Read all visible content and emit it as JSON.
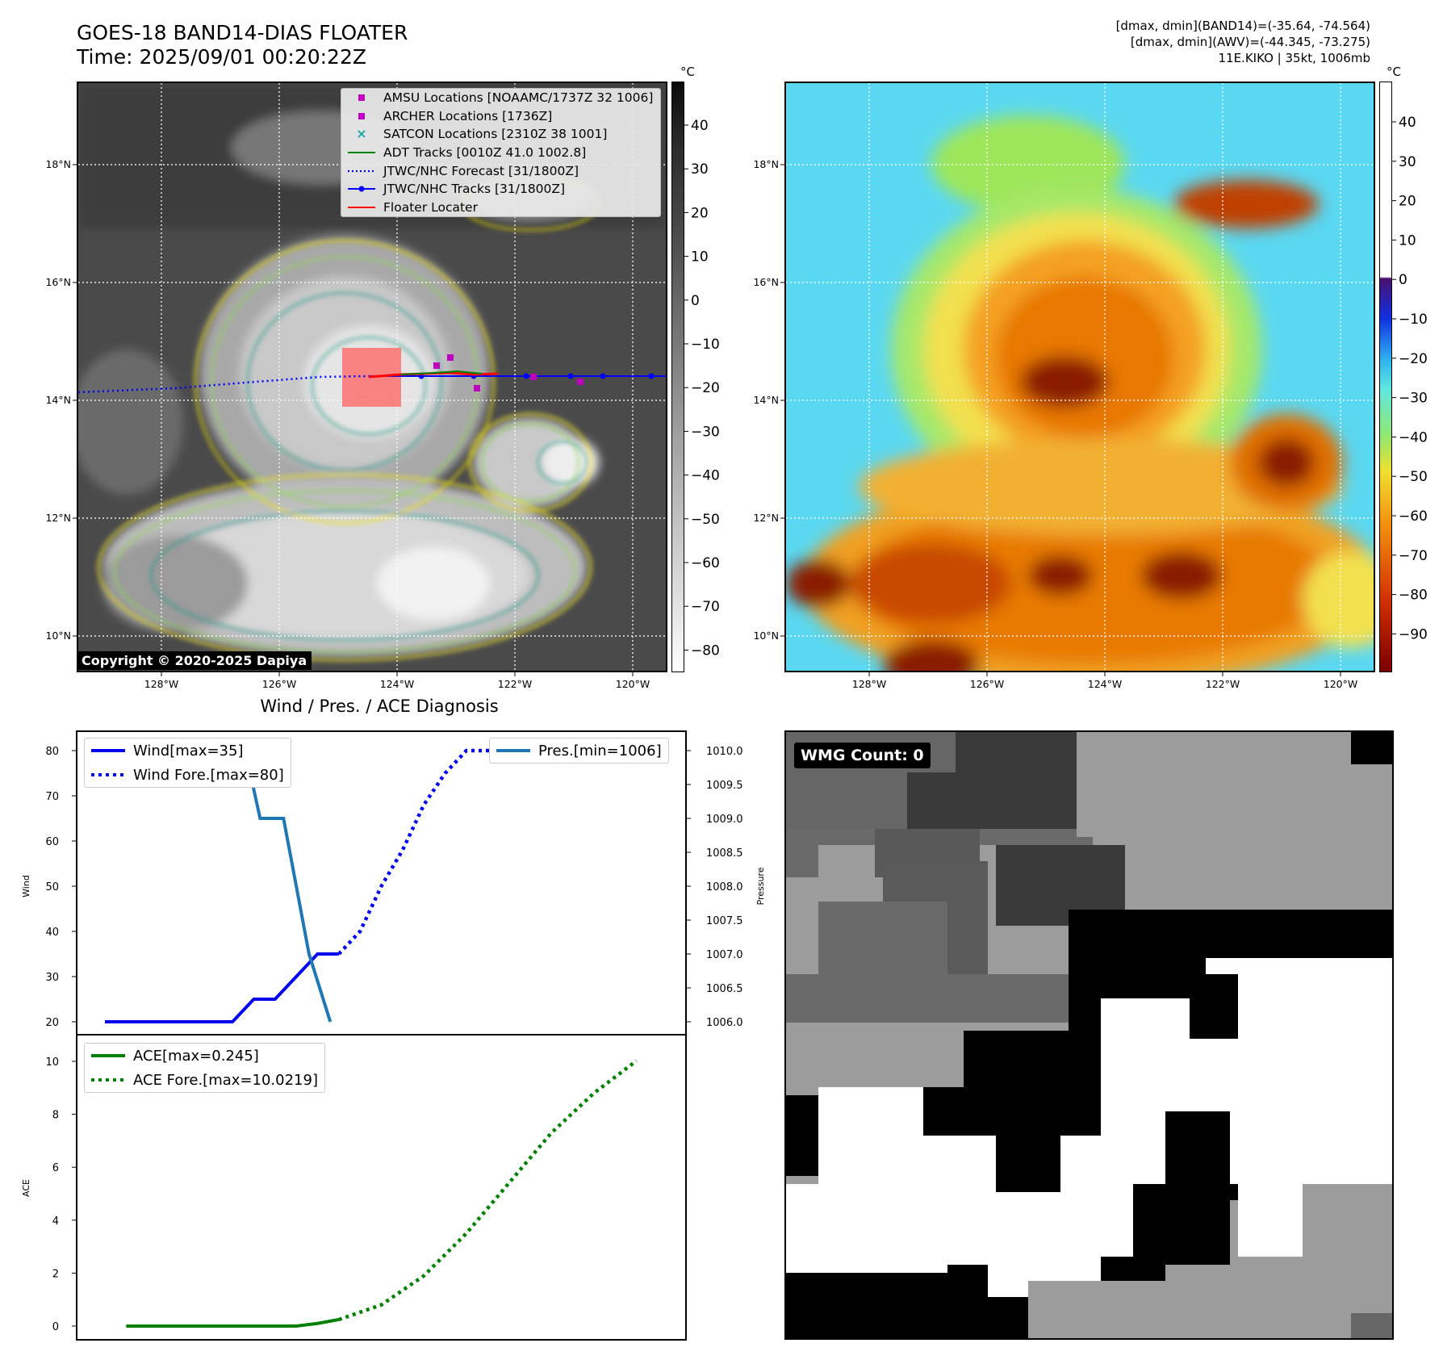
{
  "header": {
    "title_line1": "GOES-18 BAND14-DIAS FLOATER",
    "title_line2": "Time: 2025/09/01 00:20:22Z",
    "info_line1": "[dmax, dmin](BAND14)=(-35.64, -74.564)",
    "info_line2": "[dmax, dmin](AWV)=(-44.345, -73.275)",
    "info_line3": "11E.KIKO | 35kt, 1006mb"
  },
  "map": {
    "lon_labels": [
      "128°W",
      "126°W",
      "124°W",
      "122°W",
      "120°W"
    ],
    "lat_labels": [
      "18°N",
      "16°N",
      "14°N",
      "12°N",
      "10°N"
    ],
    "copyright": "Copyright © 2020-2025 Dapiya",
    "unit": "°C"
  },
  "left_colorbar": {
    "ticks": [
      "40",
      "30",
      "20",
      "10",
      "0",
      "−10",
      "−20",
      "−30",
      "−40",
      "−50",
      "−60",
      "−70",
      "−80"
    ]
  },
  "right_colorbar": {
    "ticks": [
      "40",
      "30",
      "20",
      "10",
      "0",
      "−10",
      "−20",
      "−30",
      "−40",
      "−50",
      "−60",
      "−70",
      "−80",
      "−90"
    ]
  },
  "map_legend": [
    {
      "label": "AMSU Locations [NOAAMC/1737Z 32 1006]",
      "color": "#c000c0",
      "kind": "square"
    },
    {
      "label": "ARCHER Locations [1736Z]",
      "color": "#c000c0",
      "kind": "square"
    },
    {
      "label": "SATCON Locations [2310Z 38 1001]",
      "color": "#1aa6a6",
      "kind": "x"
    },
    {
      "label": "ADT Tracks [0010Z 41.0 1002.8]",
      "color": "#008000",
      "kind": "line"
    },
    {
      "label": "JTWC/NHC Forecast [31/1800Z]",
      "color": "#0000ff",
      "kind": "dotted"
    },
    {
      "label": "JTWC/NHC Tracks [31/1800Z]",
      "color": "#0000ff",
      "kind": "lineDot"
    },
    {
      "label": "Floater Locater",
      "color": "#ff0000",
      "kind": "line"
    }
  ],
  "diagnosis": {
    "title": "Wind / Pres. / ACE Diagnosis",
    "wmg_label": "WMG Count: 0"
  },
  "chart_data": [
    {
      "type": "line",
      "title": "Wind / Pres. / ACE Diagnosis",
      "ylabel": "Wind",
      "ylabel_right": "Pressure",
      "ylim": [
        18,
        82
      ],
      "ylim_right": [
        1005.9,
        1010.1
      ],
      "yticks": [
        20,
        30,
        40,
        50,
        60,
        70,
        80
      ],
      "yticks_right": [
        "1006.0",
        "1006.5",
        "1007.0",
        "1007.5",
        "1008.0",
        "1008.5",
        "1009.0",
        "1009.5",
        "1010.0"
      ],
      "legend_left": [
        "Wind[max=35]",
        "Wind Fore.[max=80]"
      ],
      "legend_right": [
        "Pres.[min=1006]"
      ],
      "series": [
        {
          "name": "Wind[max=35]",
          "style": "solid",
          "color": "#0000ee",
          "x": [
            0,
            1,
            2,
            3,
            4,
            5,
            6,
            7,
            8,
            9,
            10,
            11
          ],
          "values": [
            20,
            20,
            20,
            20,
            20,
            20,
            20,
            25,
            25,
            30,
            35,
            35
          ]
        },
        {
          "name": "Wind Fore.[max=80]",
          "style": "dotted",
          "color": "#0000ee",
          "x": [
            11,
            12,
            13,
            14,
            15,
            16,
            17,
            18,
            19,
            20,
            21,
            22,
            23,
            24,
            25
          ],
          "values": [
            35,
            40,
            50,
            58,
            68,
            75,
            80,
            80,
            80,
            80,
            80,
            80,
            80,
            80,
            80
          ]
        },
        {
          "name": "Pres.[min=1006]",
          "style": "solid",
          "color": "#1f77b4",
          "axis": "right",
          "x": [
            1,
            2,
            3,
            4,
            5,
            6,
            6.6,
            7.3,
            8.4,
            9.6,
            10.6
          ],
          "values": [
            1010,
            1010,
            1010,
            1010,
            1010,
            1010,
            1010,
            1009,
            1009,
            1007,
            1006
          ]
        }
      ]
    },
    {
      "type": "line",
      "ylabel": "ACE",
      "ylim": [
        -0.3,
        10.6
      ],
      "yticks": [
        0,
        2,
        4,
        6,
        8,
        10
      ],
      "legend": [
        "ACE[max=0.245]",
        "ACE Fore.[max=10.0219]"
      ],
      "series": [
        {
          "name": "ACE[max=0.245]",
          "style": "solid",
          "color": "#008000",
          "x": [
            1,
            2,
            3,
            4,
            5,
            6,
            7,
            8,
            9,
            10,
            11
          ],
          "values": [
            0,
            0,
            0,
            0,
            0,
            0,
            0,
            0,
            0,
            0.1,
            0.245
          ]
        },
        {
          "name": "ACE Fore.[max=10.0219]",
          "style": "dotted",
          "color": "#008000",
          "x": [
            11,
            13,
            15,
            17,
            19,
            21,
            23,
            25
          ],
          "values": [
            0.245,
            0.8,
            1.9,
            3.5,
            5.4,
            7.3,
            8.8,
            10.0219
          ]
        }
      ]
    }
  ]
}
